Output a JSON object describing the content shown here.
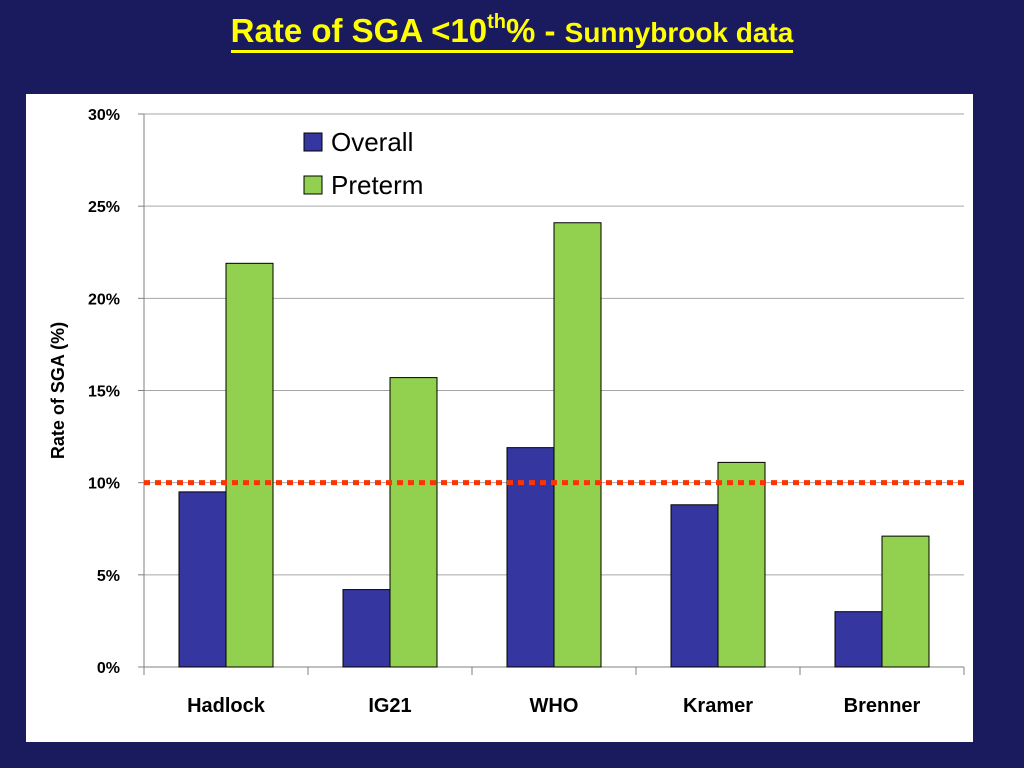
{
  "slide": {
    "title_main": "Rate of SGA <10",
    "title_sup": "th",
    "title_pct": "% - ",
    "title_sub": "Sunnybrook data"
  },
  "colors": {
    "background": "#1a1a5e",
    "title": "#ffff00",
    "overall": "#3636a0",
    "preterm": "#92d050",
    "reference_line": "#ff3300",
    "grid": "#a6a6a6"
  },
  "chart_data": {
    "type": "bar",
    "title": "",
    "xlabel": "",
    "ylabel": "Rate of SGA (%)",
    "ylim": [
      0,
      30
    ],
    "yticks": [
      "0%",
      "5%",
      "10%",
      "15%",
      "20%",
      "25%",
      "30%"
    ],
    "grid": true,
    "legend_position": "top-center",
    "categories": [
      "Hadlock",
      "IG21",
      "WHO",
      "Kramer",
      "Brenner"
    ],
    "series": [
      {
        "name": "Overall",
        "color": "#3636a0",
        "values": [
          9.5,
          4.2,
          11.9,
          8.8,
          3.0
        ]
      },
      {
        "name": "Preterm",
        "color": "#92d050",
        "values": [
          21.9,
          15.7,
          24.1,
          11.1,
          7.1
        ]
      }
    ],
    "reference_line": {
      "value": 10,
      "style": "dotted",
      "color": "#ff3300"
    }
  }
}
